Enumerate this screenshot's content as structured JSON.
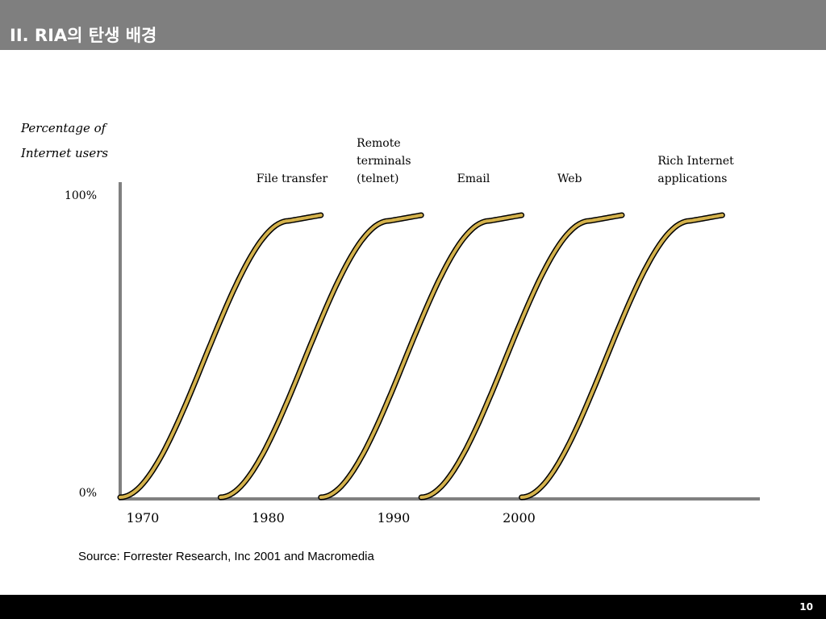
{
  "slide": {
    "title": "II. RIA의 탄생 배경",
    "source": "Source:  Forrester Research, Inc 2001 and Macromedia",
    "page_number": "10"
  },
  "chart_data": {
    "type": "line",
    "ylabel": [
      "Percentage of",
      "Internet users"
    ],
    "y_ticks": [
      "100%",
      "0%"
    ],
    "ylim": [
      0,
      100
    ],
    "x_ticks": [
      1970,
      1980,
      1990,
      2000
    ],
    "xlim": [
      1970,
      2021
    ],
    "series": [
      {
        "name": "File transfer",
        "label_lines": [
          "File transfer"
        ],
        "start": 1970,
        "end": 1986
      },
      {
        "name": "Remote terminals (telnet)",
        "label_lines": [
          "Remote",
          "terminals",
          "(telnet)"
        ],
        "start": 1978,
        "end": 1994
      },
      {
        "name": "Email",
        "label_lines": [
          "Email"
        ],
        "start": 1986,
        "end": 2002
      },
      {
        "name": "Web",
        "label_lines": [
          "Web"
        ],
        "start": 1994,
        "end": 2010
      },
      {
        "name": "Rich Internet applications",
        "label_lines": [
          "Rich Internet",
          "applications"
        ],
        "start": 2002,
        "end": 2018
      }
    ],
    "curve_color": "#d4b24c",
    "curve_outline": "#000000",
    "axis_color": "#808080",
    "grid": false
  }
}
